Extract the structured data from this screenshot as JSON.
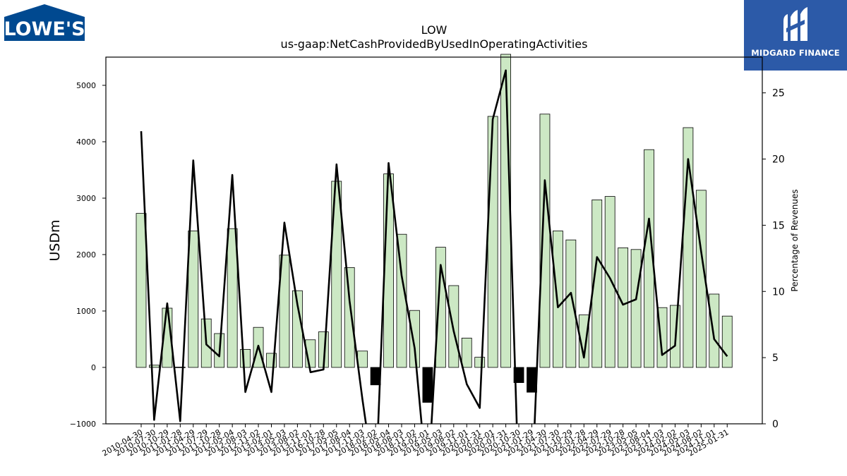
{
  "brand": {
    "left_logo_text": "LOWE'S",
    "left_logo_color": "#004990",
    "right_logo_text": "MIDGARD FINANCE",
    "right_logo_color": "#2c5aa8"
  },
  "chart_data": {
    "type": "bar",
    "title": "LOW",
    "subtitle": "us-gaap:NetCashProvidedByUsedInOperatingActivities",
    "ylabel": "USDm",
    "y2label": "Percentage of Revenues",
    "ylim": [
      -1000,
      5500
    ],
    "y2lim": [
      0,
      27.7
    ],
    "yticks": [
      -1000,
      0,
      1000,
      2000,
      3000,
      4000,
      5000
    ],
    "y2ticks": [
      0,
      5,
      10,
      15,
      20,
      25
    ],
    "positive_color": "#cce8c4",
    "negative_color": "#000000",
    "line_color": "#000000",
    "categories": [
      "2010-04-30",
      "2010-07-30",
      "2010-10-29",
      "2011-01-28",
      "2011-04-29",
      "2011-07-29",
      "2011-10-28",
      "2012-05-04",
      "2012-08-03",
      "2012-11-02",
      "2013-02-01",
      "2013-05-03",
      "2013-08-02",
      "2013-11-01",
      "2016-10-28",
      "2017-05-05",
      "2017-08-04",
      "2017-11-03",
      "2018-02-02",
      "2018-05-04",
      "2018-08-03",
      "2018-11-02",
      "2019-02-01",
      "2019-05-03",
      "2019-08-02",
      "2019-11-01",
      "2020-01-31",
      "2020-05-01",
      "2020-07-31",
      "2020-10-30",
      "2021-01-29",
      "2021-04-30",
      "2021-07-30",
      "2021-10-29",
      "2022-01-28",
      "2022-04-29",
      "2022-07-29",
      "2022-10-28",
      "2023-05-05",
      "2023-08-04",
      "2023-11-03",
      "2024-02-02",
      "2024-05-03",
      "2024-08-02",
      "2024-11-01",
      "2025-01-31"
    ],
    "x_tick_labels": [
      "2010-04-30",
      "2010-07-30",
      "2010-10-29",
      "2011-01-28",
      "2011-04-29",
      "2011-07-29",
      "2011-10-28",
      "2012-05-04",
      "2012-08-03",
      "2012-11-02",
      "2013-02-01",
      "2013-05-03",
      "2013-08-02",
      "2013-11-01",
      "2016-10-28",
      "2017-05-05",
      "2017-08-04",
      "2017-11-03",
      "2018-02-02",
      "2018-05-04",
      "2018-08-03",
      "2018-11-02",
      "2019-02-01",
      "2019-05-03",
      "2019-08-02",
      "2019-11-01",
      "2020-01-31",
      "2020-05-01",
      "2020-07-31",
      "2020-10-30",
      "2021-01-29",
      "2021-04-30",
      "2021-07-30",
      "2021-10-29",
      "2022-01-28",
      "2022-04-29",
      "2022-07-29",
      "2022-10-28",
      "2023-05-05",
      "2023-08-04",
      "2023-11-03",
      "2024-02-02",
      "2024-05-03",
      "2024-08-02",
      "2024-11-01",
      "2025-01-31"
    ],
    "series": [
      {
        "type": "bar",
        "axis": "left",
        "values": [
          2730,
          40,
          1050,
          5,
          2420,
          860,
          600,
          2460,
          320,
          710,
          250,
          1990,
          1360,
          490,
          630,
          3300,
          1770,
          290,
          -310,
          3430,
          2360,
          1010,
          -620,
          2130,
          1450,
          520,
          180,
          4450,
          5550,
          -270,
          -440,
          4490,
          2420,
          2260,
          930,
          2970,
          3030,
          2120,
          2090,
          3860,
          1060,
          1100,
          4250,
          3140,
          1300,
          910
        ]
      },
      {
        "type": "line",
        "axis": "right",
        "values": [
          22.1,
          0.3,
          9.1,
          0.2,
          19.9,
          6.0,
          5.1,
          18.8,
          2.4,
          5.9,
          2.4,
          15.2,
          9.0,
          3.9,
          4.1,
          19.6,
          9.3,
          1.8,
          -5.0,
          19.7,
          11.2,
          5.7,
          -5.0,
          12.0,
          7.0,
          3.0,
          1.2,
          23.0,
          26.7,
          -5.0,
          -5.0,
          18.4,
          8.8,
          9.9,
          5.0,
          12.6,
          11.0,
          9.0,
          9.4,
          15.5,
          5.2,
          5.9,
          20.0,
          13.0,
          6.4,
          5.1
        ]
      }
    ]
  }
}
